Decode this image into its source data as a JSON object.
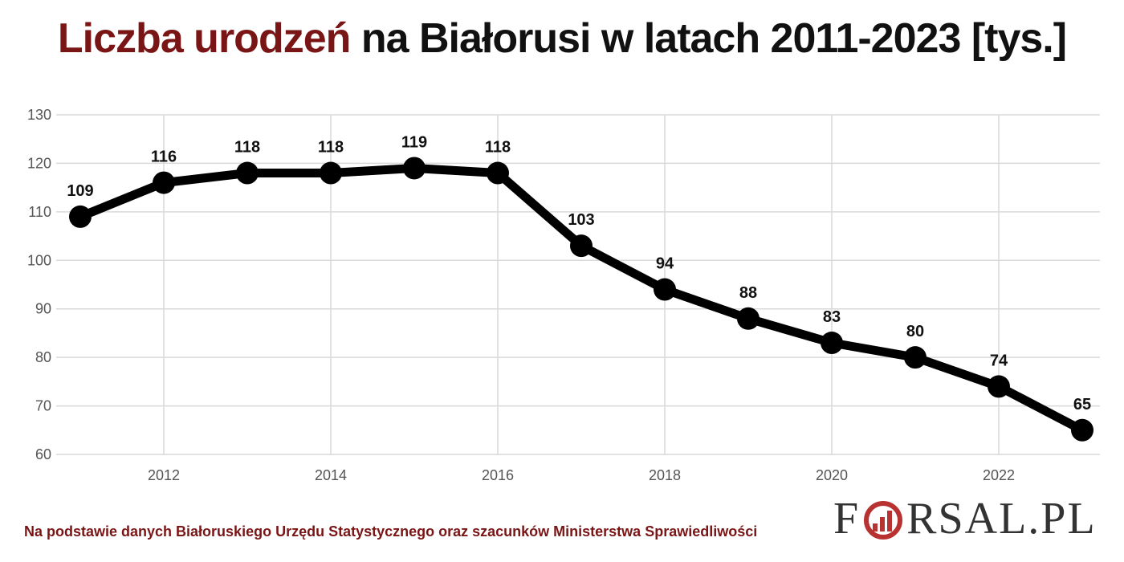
{
  "title": {
    "highlight": "Liczba urodzeń",
    "rest": " na Białorusi w latach 2011-2023 [tys.]",
    "highlight_color": "#7a1515",
    "color": "#111111"
  },
  "source": "Na podstawie danych Białoruskiego Urzędu Statystycznego oraz szacunków Ministerstwa Sprawiedliwości",
  "logo": {
    "prefix": "F",
    "suffix": "RSAL.PL",
    "o_icon": "bar-chart-circle-icon",
    "accent": "#b83232"
  },
  "chart_data": {
    "type": "line",
    "title": "Liczba urodzeń na Białorusi w latach 2011-2023 [tys.]",
    "xlabel": "",
    "ylabel": "",
    "x": [
      2011,
      2012,
      2013,
      2014,
      2015,
      2016,
      2017,
      2018,
      2019,
      2020,
      2021,
      2022,
      2023
    ],
    "series": [
      {
        "values": [
          109,
          116,
          118,
          118,
          119,
          118,
          103,
          94,
          88,
          83,
          80,
          74,
          65
        ]
      }
    ],
    "data_labels": [
      "109",
      "116",
      "118",
      "118",
      "119",
      "118",
      "103",
      "94",
      "88",
      "83",
      "80",
      "74",
      "65"
    ],
    "xlim": [
      2011,
      2023
    ],
    "ylim": [
      60,
      130
    ],
    "x_ticks": [
      2012,
      2014,
      2016,
      2018,
      2020,
      2022
    ],
    "y_ticks": [
      60,
      70,
      80,
      90,
      100,
      110,
      120,
      130
    ],
    "grid": true,
    "legend": "none",
    "line_color": "#000000",
    "grid_color": "#d9d9d9"
  }
}
